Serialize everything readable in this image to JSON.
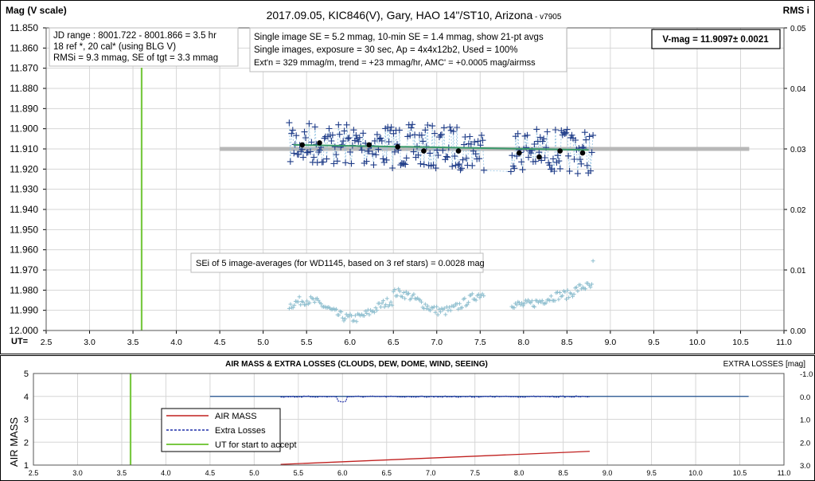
{
  "header": {
    "title": "2017.09.05,  KIC846(V),  Gary,  HAO  14\"/ST10,  Arizona",
    "version": " - v7905",
    "left_axis_label": "Mag (V scale)",
    "right_axis_label": "RMS i",
    "x_axis_label": "UT="
  },
  "info": {
    "box1_line1": "JD range : 8001.722 - 8001.866 =  3.5  hr",
    "box1_line2": "18 ref *, 20 cal* (using BLG V)",
    "box1_line3": "RMSi = 9.3 mmag, SE of tgt = 3.3 mmag",
    "box2_line1": "Single image SE = 5.2 mmag, 10-min SE = 1.4 mmag, show 21-pt avgs",
    "box2_line2": "Single images, exposure = 30 sec, Ap = 4x4x12b2, Used = 100%",
    "box2_line3": "Ext'n = 329 mmag/m, trend = +23 mmag/hr, AMC' = +0.0005 mag/airmss",
    "vmag": "V-mag = 11.9097± 0.0021",
    "sei_note": "SEi of 5 image-averages (for WD1145, based on 3 ref stars) = 0.0028 mag"
  },
  "lower": {
    "title": "AIR MASS & EXTRA LOSSES (CLOUDS, DEW, DOME, WIND, SEEING)",
    "right_label": "EXTRA LOSSES [mag]",
    "left_label": "AIR MASS",
    "legend": [
      "AIR MASS",
      "Extra Losses",
      "UT for start to accept"
    ]
  },
  "colors": {
    "data": "#1f3c88",
    "rms": "#8fbfcf",
    "avg": "#000000",
    "trend": "#3a9a6a",
    "meanline": "#b8b8b8",
    "ut_accept": "#7ac943",
    "airmass": "#c0201f",
    "losses": "#1f2fa8",
    "losses_line": "#1f4e8c"
  },
  "chart_data": [
    {
      "type": "scatter",
      "title": "2017.09.05,  KIC846(V),  Gary,  HAO  14\"/ST10,  Arizona",
      "xlabel": "UT=",
      "ylabel": "Mag (V scale)",
      "y2label": "RMS i",
      "xlim": [
        2.5,
        11.0
      ],
      "ylim": [
        11.85,
        12.0
      ],
      "y_inverted": true,
      "y2lim": [
        0,
        0.05
      ],
      "x_ticks": [
        "2.5",
        "3.0",
        "3.5",
        "4.0",
        "4.5",
        "5.0",
        "5.5",
        "6.0",
        "6.5",
        "7.0",
        "7.5",
        "8.0",
        "8.5",
        "9.0",
        "9.5",
        "10.0",
        "10.5",
        "11.0"
      ],
      "y_ticks": [
        "11.850",
        "11.860",
        "11.870",
        "11.880",
        "11.890",
        "11.900",
        "11.910",
        "11.920",
        "11.930",
        "11.940",
        "11.950",
        "11.960",
        "11.970",
        "11.980",
        "11.990",
        "12.000"
      ],
      "y2_ticks": [
        "0.05",
        "0.04",
        "0.03",
        "0.02",
        "0.01",
        "0.00"
      ],
      "ut_accept": 3.6,
      "mean_mag": 11.91,
      "mean_line_x": [
        4.5,
        10.6
      ],
      "series": [
        {
          "name": "single images",
          "x_range": [
            5.3,
            8.8
          ],
          "y_range": [
            11.897,
            11.925
          ],
          "mean": 11.909
        },
        {
          "name": "21-pt avgs",
          "x": [
            5.45,
            5.65,
            6.22,
            6.55,
            6.85,
            7.25,
            7.95,
            8.18,
            8.42,
            8.68
          ],
          "y": [
            11.908,
            11.907,
            11.908,
            11.909,
            11.911,
            11.911,
            11.912,
            11.914,
            11.911,
            11.912
          ]
        },
        {
          "name": "RMSi",
          "x_range": [
            5.3,
            8.8
          ],
          "y_range": [
            0.001,
            0.012
          ]
        }
      ],
      "grid": true
    },
    {
      "type": "line",
      "title": "AIR MASS & EXTRA LOSSES (CLOUDS, DEW, DOME, WIND, SEEING)",
      "xlabel": "",
      "ylabel": "AIR MASS",
      "y2label": "EXTRA LOSSES [mag]",
      "xlim": [
        2.5,
        11.0
      ],
      "ylim": [
        1,
        5
      ],
      "y2lim": [
        -1.0,
        3.0
      ],
      "y2_inverted": true,
      "x_ticks": [
        "2.5",
        "3.0",
        "3.5",
        "4.0",
        "4.5",
        "5.0",
        "5.5",
        "6.0",
        "6.5",
        "7.0",
        "7.5",
        "8.0",
        "8.5",
        "9.0",
        "9.5",
        "10.0",
        "10.5",
        "11.0"
      ],
      "y_ticks": [
        "5",
        "4",
        "3",
        "2",
        "1"
      ],
      "y2_ticks": [
        "-1.0",
        "0.0",
        "1.0",
        "2.0",
        "3.0"
      ],
      "legend_position": "left",
      "series": [
        {
          "name": "AIR MASS",
          "x": [
            5.3,
            8.8
          ],
          "y": [
            1.03,
            1.6
          ]
        },
        {
          "name": "Extra Losses",
          "x_range": [
            5.3,
            8.8
          ],
          "y_range": [
            -0.02,
            0.25
          ]
        },
        {
          "name": "UT for start to accept",
          "x": [
            3.6,
            3.6
          ]
        }
      ],
      "zero_loss_line_x": [
        4.5,
        10.6
      ]
    }
  ]
}
